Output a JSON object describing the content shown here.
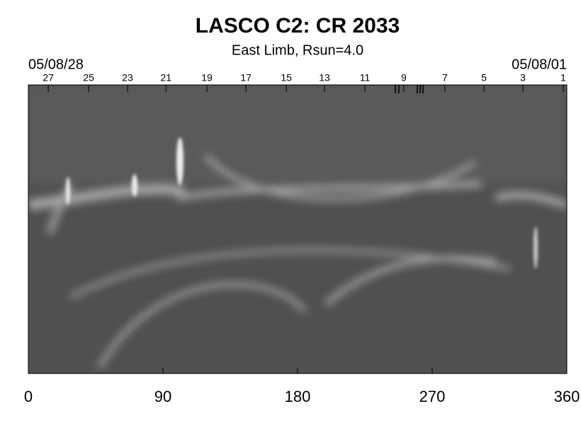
{
  "chart_data": {
    "type": "synoptic-map",
    "title": "LASCO C2: CR 2033",
    "subtitle": "East Limb, Rsun=4.0",
    "start_label": "05/08/28",
    "end_label": "05/08/01",
    "xlim": [
      0,
      360
    ],
    "xticks": [
      0,
      90,
      180,
      270,
      360
    ],
    "x2ticks": [
      {
        "value": 13.3,
        "label": "27"
      },
      {
        "value": 40.3,
        "label": "25"
      },
      {
        "value": 66.3,
        "label": "23"
      },
      {
        "value": 92,
        "label": "21"
      },
      {
        "value": 119.4,
        "label": "19"
      },
      {
        "value": 145.5,
        "label": "17"
      },
      {
        "value": 172.5,
        "label": "15"
      },
      {
        "value": 198,
        "label": "13"
      },
      {
        "value": 225,
        "label": "11"
      },
      {
        "value": 251,
        "label": "9"
      },
      {
        "value": 278.5,
        "label": "7"
      },
      {
        "value": 304.6,
        "label": "5"
      },
      {
        "value": 330.6,
        "label": "3"
      },
      {
        "value": 357.6,
        "label": "1"
      }
    ]
  }
}
